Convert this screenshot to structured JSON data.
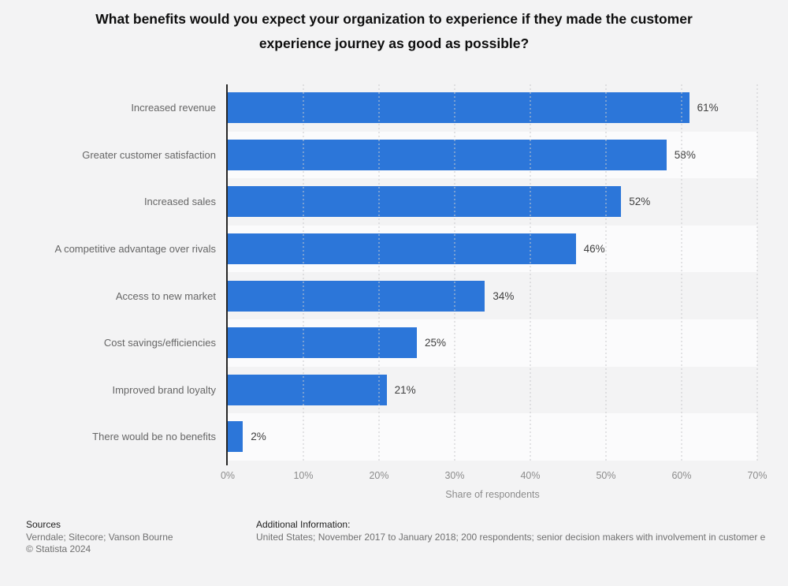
{
  "chart_data": {
    "type": "bar",
    "orientation": "horizontal",
    "title": "What benefits would you expect your organization to experience if they made the customer experience journey as good as possible?",
    "categories": [
      "Increased revenue",
      "Greater customer satisfaction",
      "Increased sales",
      "A competitive advantage over rivals",
      "Access to new market",
      "Cost savings/efficiencies",
      "Improved brand loyalty",
      "There would be no benefits"
    ],
    "values": [
      61,
      58,
      52,
      46,
      34,
      25,
      21,
      2
    ],
    "value_labels": [
      "61%",
      "58%",
      "52%",
      "46%",
      "34%",
      "25%",
      "21%",
      "2%"
    ],
    "xlabel": "Share of respondents",
    "ylabel": "",
    "xlim": [
      0,
      70
    ],
    "tick_labels": [
      "0%",
      "10%",
      "20%",
      "30%",
      "40%",
      "50%",
      "60%",
      "70%"
    ],
    "grid": "dotted-vertical",
    "legend": "none",
    "bar_color": "#2c76d9",
    "row_stripe_colors": [
      "#f3f3f4",
      "#fbfbfc"
    ]
  },
  "footer": {
    "sources_heading": "Sources",
    "sources_line": "Verndale; Sitecore; Vanson Bourne",
    "copyright": "© Statista 2024",
    "additional_heading": "Additional Information:",
    "additional_text": "United States; November 2017 to January 2018; 200 respondents; senior decision makers with involvement in customer e"
  }
}
